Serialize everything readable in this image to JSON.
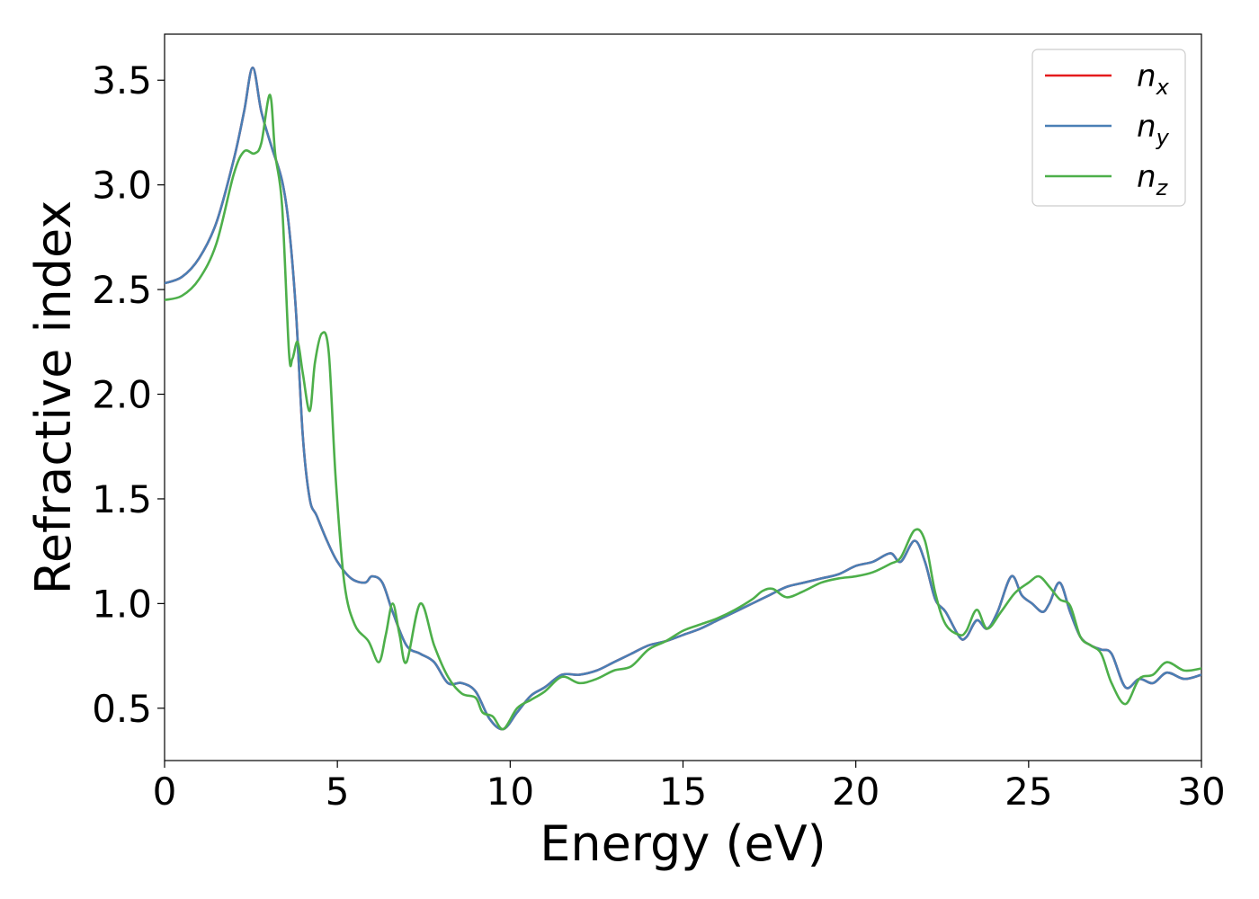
{
  "chart_data": {
    "type": "line",
    "xlabel": "Energy (eV)",
    "ylabel": "Refractive index",
    "xlim": [
      0,
      30
    ],
    "ylim": [
      0.25,
      3.72
    ],
    "xticks": [
      0,
      5,
      10,
      15,
      20,
      25,
      30
    ],
    "xtick_labels": [
      "0",
      "5",
      "10",
      "15",
      "20",
      "25",
      "30"
    ],
    "yticks": [
      0.5,
      1.0,
      1.5,
      2.0,
      2.5,
      3.0,
      3.5
    ],
    "ytick_labels": [
      "0.5",
      "1.0",
      "1.5",
      "2.0",
      "2.5",
      "3.0",
      "3.5"
    ],
    "grid": false,
    "legend_position": "top-right",
    "series": [
      {
        "name": "n_x",
        "label_base": "n",
        "label_sub": "x",
        "color": "#e41a1c",
        "x": [
          0,
          0.5,
          1.0,
          1.5,
          2.0,
          2.3,
          2.55,
          2.8,
          3.1,
          3.4,
          3.6,
          3.8,
          4.0,
          4.2,
          4.4,
          4.7,
          5.0,
          5.4,
          5.8,
          6.0,
          6.3,
          6.6,
          7.0,
          7.4,
          7.8,
          8.2,
          8.6,
          9.0,
          9.4,
          9.8,
          10.2,
          10.6,
          11.0,
          11.5,
          12.0,
          12.5,
          13.0,
          13.5,
          14.0,
          14.5,
          15.0,
          15.5,
          16.0,
          16.5,
          17.0,
          17.5,
          18.0,
          18.5,
          19.0,
          19.5,
          20.0,
          20.5,
          21.0,
          21.3,
          21.7,
          22.0,
          22.3,
          22.6,
          23.0,
          23.2,
          23.5,
          23.8,
          24.1,
          24.5,
          24.8,
          25.1,
          25.4,
          25.6,
          25.9,
          26.2,
          26.5,
          26.8,
          27.1,
          27.4,
          27.8,
          28.2,
          28.6,
          29.0,
          29.5,
          30.0
        ],
        "values": [
          2.53,
          2.56,
          2.65,
          2.82,
          3.12,
          3.35,
          3.56,
          3.35,
          3.18,
          3.02,
          2.8,
          2.4,
          1.8,
          1.5,
          1.42,
          1.3,
          1.2,
          1.12,
          1.1,
          1.13,
          1.1,
          0.96,
          0.8,
          0.76,
          0.72,
          0.62,
          0.62,
          0.58,
          0.45,
          0.4,
          0.48,
          0.56,
          0.6,
          0.66,
          0.66,
          0.68,
          0.72,
          0.76,
          0.8,
          0.82,
          0.85,
          0.88,
          0.92,
          0.96,
          1.0,
          1.04,
          1.08,
          1.1,
          1.12,
          1.14,
          1.18,
          1.2,
          1.24,
          1.2,
          1.3,
          1.2,
          1.02,
          0.96,
          0.84,
          0.84,
          0.92,
          0.88,
          0.96,
          1.13,
          1.04,
          1.0,
          0.96,
          1.0,
          1.1,
          0.96,
          0.84,
          0.8,
          0.78,
          0.76,
          0.6,
          0.64,
          0.62,
          0.67,
          0.64,
          0.66
        ]
      },
      {
        "name": "n_y",
        "label_base": "n",
        "label_sub": "y",
        "color": "#4a7fb5",
        "x": [
          0,
          0.5,
          1.0,
          1.5,
          2.0,
          2.3,
          2.55,
          2.8,
          3.1,
          3.4,
          3.6,
          3.8,
          4.0,
          4.2,
          4.4,
          4.7,
          5.0,
          5.4,
          5.8,
          6.0,
          6.3,
          6.6,
          7.0,
          7.4,
          7.8,
          8.2,
          8.6,
          9.0,
          9.4,
          9.8,
          10.2,
          10.6,
          11.0,
          11.5,
          12.0,
          12.5,
          13.0,
          13.5,
          14.0,
          14.5,
          15.0,
          15.5,
          16.0,
          16.5,
          17.0,
          17.5,
          18.0,
          18.5,
          19.0,
          19.5,
          20.0,
          20.5,
          21.0,
          21.3,
          21.7,
          22.0,
          22.3,
          22.6,
          23.0,
          23.2,
          23.5,
          23.8,
          24.1,
          24.5,
          24.8,
          25.1,
          25.4,
          25.6,
          25.9,
          26.2,
          26.5,
          26.8,
          27.1,
          27.4,
          27.8,
          28.2,
          28.6,
          29.0,
          29.5,
          30.0
        ],
        "values": [
          2.53,
          2.56,
          2.65,
          2.82,
          3.12,
          3.35,
          3.56,
          3.35,
          3.18,
          3.02,
          2.8,
          2.4,
          1.8,
          1.5,
          1.42,
          1.3,
          1.2,
          1.12,
          1.1,
          1.13,
          1.1,
          0.96,
          0.8,
          0.76,
          0.72,
          0.62,
          0.62,
          0.58,
          0.45,
          0.4,
          0.48,
          0.56,
          0.6,
          0.66,
          0.66,
          0.68,
          0.72,
          0.76,
          0.8,
          0.82,
          0.85,
          0.88,
          0.92,
          0.96,
          1.0,
          1.04,
          1.08,
          1.1,
          1.12,
          1.14,
          1.18,
          1.2,
          1.24,
          1.2,
          1.3,
          1.2,
          1.02,
          0.96,
          0.84,
          0.84,
          0.92,
          0.88,
          0.96,
          1.13,
          1.04,
          1.0,
          0.96,
          1.0,
          1.1,
          0.96,
          0.84,
          0.8,
          0.78,
          0.76,
          0.6,
          0.64,
          0.62,
          0.67,
          0.64,
          0.66
        ]
      },
      {
        "name": "n_z",
        "label_base": "n",
        "label_sub": "z",
        "color": "#4daf4a",
        "x": [
          0,
          0.5,
          1.0,
          1.5,
          2.0,
          2.3,
          2.6,
          2.8,
          3.05,
          3.2,
          3.4,
          3.6,
          3.7,
          3.85,
          4.0,
          4.2,
          4.35,
          4.55,
          4.75,
          4.95,
          5.2,
          5.5,
          5.9,
          6.2,
          6.4,
          6.6,
          6.8,
          7.0,
          7.4,
          7.8,
          8.2,
          8.6,
          9.0,
          9.2,
          9.5,
          9.8,
          10.2,
          10.6,
          11.0,
          11.5,
          12.0,
          12.5,
          13.0,
          13.5,
          14.0,
          14.5,
          15.0,
          15.5,
          16.0,
          16.5,
          17.0,
          17.3,
          17.6,
          18.0,
          18.5,
          19.0,
          19.5,
          20.0,
          20.5,
          21.0,
          21.3,
          21.7,
          22.0,
          22.3,
          22.6,
          23.0,
          23.2,
          23.5,
          23.8,
          24.2,
          24.6,
          25.0,
          25.3,
          25.6,
          25.9,
          26.2,
          26.5,
          26.8,
          27.1,
          27.4,
          27.8,
          28.2,
          28.6,
          29.0,
          29.5,
          30.0
        ],
        "values": [
          2.45,
          2.47,
          2.55,
          2.72,
          3.05,
          3.16,
          3.15,
          3.2,
          3.43,
          3.15,
          2.9,
          2.2,
          2.17,
          2.25,
          2.1,
          1.92,
          2.15,
          2.29,
          2.2,
          1.6,
          1.1,
          0.9,
          0.82,
          0.72,
          0.85,
          1.0,
          0.85,
          0.72,
          1.0,
          0.8,
          0.65,
          0.57,
          0.55,
          0.48,
          0.46,
          0.4,
          0.5,
          0.54,
          0.58,
          0.65,
          0.62,
          0.64,
          0.68,
          0.7,
          0.78,
          0.82,
          0.87,
          0.9,
          0.93,
          0.97,
          1.02,
          1.06,
          1.07,
          1.03,
          1.06,
          1.1,
          1.12,
          1.13,
          1.15,
          1.19,
          1.22,
          1.35,
          1.3,
          1.05,
          0.9,
          0.85,
          0.87,
          0.97,
          0.88,
          0.96,
          1.05,
          1.1,
          1.13,
          1.08,
          1.02,
          0.99,
          0.84,
          0.8,
          0.76,
          0.62,
          0.52,
          0.64,
          0.66,
          0.72,
          0.68,
          0.69
        ]
      }
    ]
  }
}
